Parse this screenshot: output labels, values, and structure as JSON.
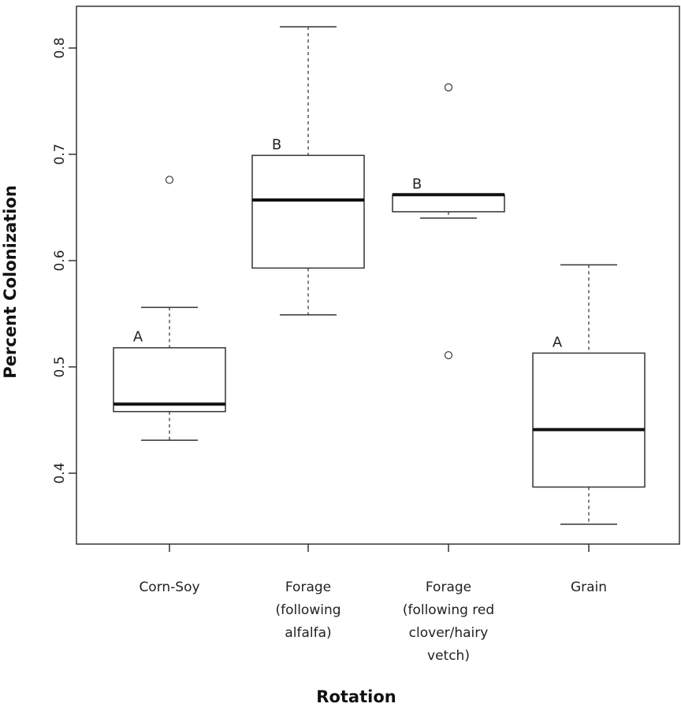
{
  "chart_data": {
    "type": "box",
    "title": "",
    "xlabel": "Rotation",
    "ylabel": "Percent Colonization",
    "ylim": [
      0.335,
      0.84
    ],
    "yticks": [
      "0.4",
      "0.5",
      "0.6",
      "0.7",
      "0.8"
    ],
    "grid": false,
    "categories": [
      [
        "Corn-Soy"
      ],
      [
        "Forage",
        "(following",
        "alfalfa)"
      ],
      [
        "Forage",
        "(following red",
        "clover/hairy",
        "vetch)"
      ],
      [
        "Grain"
      ]
    ],
    "boxes": [
      {
        "whisker_low": 0.431,
        "q1": 0.458,
        "median": 0.465,
        "q3": 0.518,
        "whisker_high": 0.556,
        "outliers": [
          0.676
        ],
        "group": "A"
      },
      {
        "whisker_low": 0.549,
        "q1": 0.593,
        "median": 0.657,
        "q3": 0.699,
        "whisker_high": 0.82,
        "outliers": [],
        "group": "B"
      },
      {
        "whisker_low": 0.64,
        "q1": 0.646,
        "median": 0.662,
        "q3": 0.662,
        "whisker_high": 0.662,
        "outliers": [
          0.763,
          0.511
        ],
        "group": "B"
      },
      {
        "whisker_low": 0.352,
        "q1": 0.387,
        "median": 0.441,
        "q3": 0.513,
        "whisker_high": 0.596,
        "outliers": [],
        "group": "A"
      }
    ]
  }
}
